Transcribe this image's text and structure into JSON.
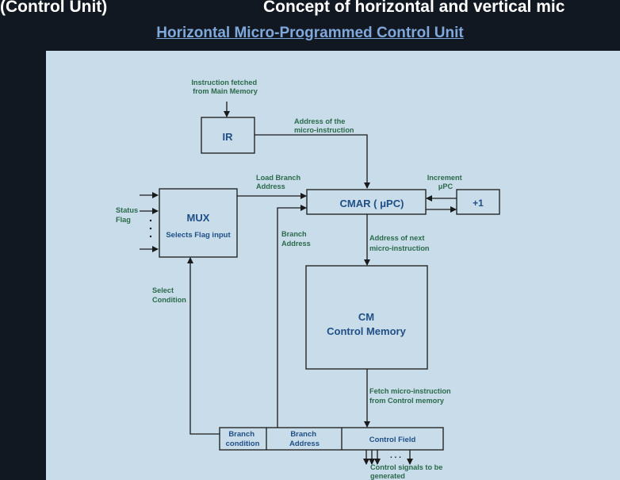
{
  "header": {
    "left_title": "(Control Unit)",
    "right_title": "Concept of horizontal and vertical mic",
    "subtitle": "Horizontal  Micro-Programmed Control Unit"
  },
  "colors": {
    "background": "#121821",
    "slide": "#c8dcea",
    "label_green": "#2b6a4a",
    "block_text_blue": "#1f4f86",
    "subtitle_blue": "#7fa8dc"
  },
  "diagram": {
    "instruction_label": [
      "Instruction fetched",
      "from Main Memory"
    ],
    "ir": "IR",
    "address_micro_label": [
      "Address of the",
      "micro-instruction"
    ],
    "load_branch_label": [
      "Load Branch",
      "Address"
    ],
    "increment_label": [
      "Increment",
      "μPC"
    ],
    "cmar": "CMAR ( μPC)",
    "plus_one": "+1",
    "status_flag_label": [
      "Status",
      "Flag"
    ],
    "mux_title": "MUX",
    "mux_sub": "Selects Flag input",
    "branch_address_label": [
      "Branch",
      "Address"
    ],
    "address_next_label": [
      "Address of next",
      "micro-instruction"
    ],
    "select_condition_label": [
      "Select",
      "Condition"
    ],
    "cm_title": "CM",
    "cm_sub": "Control Memory",
    "fetch_label": [
      "Fetch micro-instruction",
      "from Control memory"
    ],
    "field_branch_condition": [
      "Branch",
      "condition"
    ],
    "field_branch_address": [
      "Branch",
      "Address"
    ],
    "field_control": "Control Field",
    "control_signals_label": [
      "Control signals to be",
      "generated"
    ],
    "ellipsis": ". . ."
  }
}
